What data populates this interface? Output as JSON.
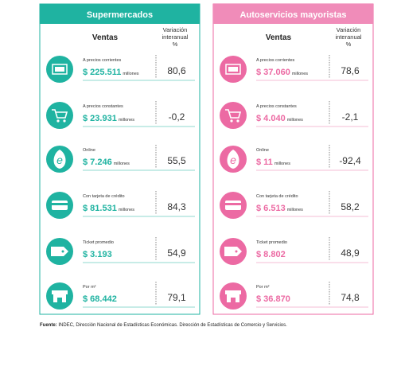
{
  "panels": [
    {
      "title": "Supermercados",
      "column_headers": {
        "sales": "Ventas",
        "variation": [
          "Variación",
          "interanual",
          "%"
        ]
      },
      "rows": [
        {
          "label": "A precios corrientes",
          "amount": "$ 225.511",
          "unit": "millones",
          "variation": "80,6"
        },
        {
          "label": "A precios constantes",
          "amount": "$ 23.931",
          "unit": "millones",
          "variation": "-0,2"
        },
        {
          "label": "Online",
          "amount": "$ 7.246",
          "unit": "millones",
          "variation": "55,5"
        },
        {
          "label": "Con tarjeta de crédito",
          "amount": "$ 81.531",
          "unit": "millones",
          "variation": "84,3"
        },
        {
          "label": "Ticket promedio",
          "amount": "$ 3.193",
          "variation": "54,9"
        },
        {
          "label": "Por m²",
          "amount": "$ 68.442",
          "variation": "79,1"
        }
      ]
    },
    {
      "title": "Autoservicios mayoristas",
      "column_headers": {
        "sales": "Ventas",
        "variation": [
          "Variación",
          "interanual",
          "%"
        ]
      },
      "rows": [
        {
          "label": "A precios corrientes",
          "amount": "$ 37.060",
          "unit": "millones",
          "variation": "78,6"
        },
        {
          "label": "A precios constantes",
          "amount": "$ 4.040",
          "unit": "millones",
          "variation": "-2,1"
        },
        {
          "label": "Online",
          "amount": "$ 11",
          "unit": "millones",
          "variation": "-92,4"
        },
        {
          "label": "Con tarjeta de crédito",
          "amount": "$ 6.513",
          "unit": "millones",
          "variation": "58,2"
        },
        {
          "label": "Ticket promedio",
          "amount": "$ 8.802",
          "variation": "48,9"
        },
        {
          "label": "Por m²",
          "amount": "$ 36.870",
          "variation": "74,8"
        }
      ]
    }
  ],
  "source": {
    "label": "Fuente:",
    "text": "INDEC, Dirección Nacional de Estadísticas Económicas. Dirección de Estadísticas de Comercio y Servicios."
  }
}
